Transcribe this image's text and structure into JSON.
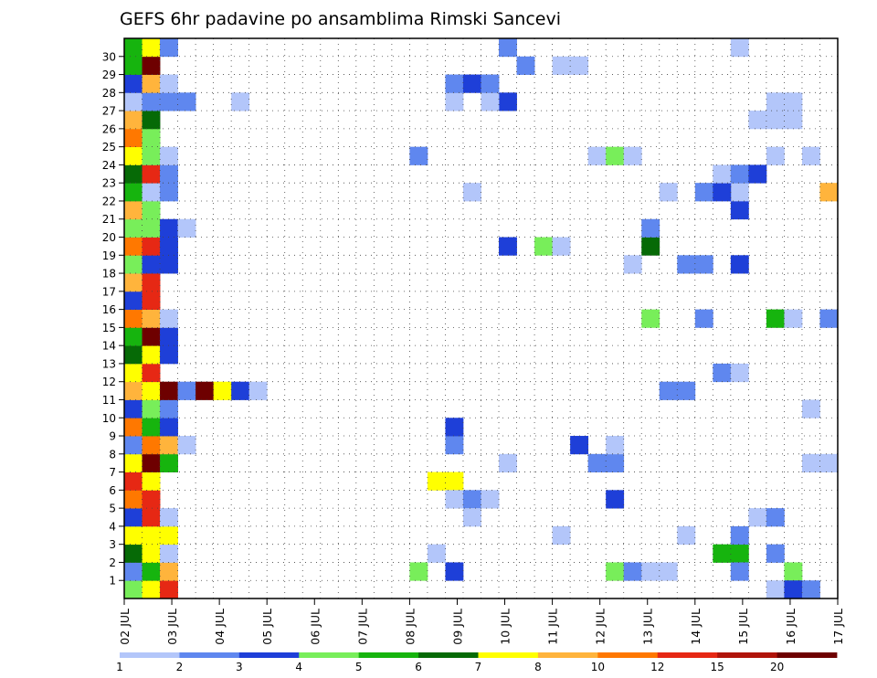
{
  "chart_data": {
    "type": "heatmap",
    "title": "GEFS 6hr padavine po ansamblima Rimski Sancevi",
    "xlabel": "",
    "ylabel": "",
    "x_ticks": [
      "02 JUL",
      "03 JUL",
      "04 JUL",
      "05 JUL",
      "06 JUL",
      "07 JUL",
      "08 JUL",
      "09 JUL",
      "10 JUL",
      "11 JUL",
      "12 JUL",
      "13 JUL",
      "14 JUL",
      "15 JUL",
      "16 JUL",
      "17 JUL"
    ],
    "y_ticks": [
      "1",
      "2",
      "3",
      "4",
      "5",
      "6",
      "7",
      "8",
      "9",
      "10",
      "11",
      "12",
      "13",
      "14",
      "15",
      "16",
      "17",
      "18",
      "19",
      "20",
      "21",
      "22",
      "23",
      "24",
      "25",
      "26",
      "27",
      "28",
      "29",
      "30"
    ],
    "member_range": [
      0,
      30
    ],
    "grid": true,
    "colorbar": {
      "labels": [
        "1",
        "2",
        "3",
        "4",
        "5",
        "6",
        "7",
        "8",
        "10",
        "12",
        "15",
        "20"
      ],
      "colors": [
        "#b3c6fa",
        "#5f87ef",
        "#1e3fd8",
        "#78ee5a",
        "#16b40e",
        "#066a06",
        "#ffff00",
        "#ffb43c",
        "#ff7800",
        "#e62814",
        "#b0140a",
        "#6e0000"
      ]
    },
    "cells": [
      {
        "d": 0,
        "m": 0,
        "c": 4
      },
      {
        "d": 1,
        "m": 0,
        "c": 7
      },
      {
        "d": 2,
        "m": 0,
        "c": 10
      },
      {
        "d": 0,
        "m": 1,
        "c": 2
      },
      {
        "d": 1,
        "m": 1,
        "c": 5
      },
      {
        "d": 2,
        "m": 1,
        "c": 8
      },
      {
        "d": 0,
        "m": 2,
        "c": 6
      },
      {
        "d": 1,
        "m": 2,
        "c": 7
      },
      {
        "d": 2,
        "m": 2,
        "c": 1
      },
      {
        "d": 0,
        "m": 3,
        "c": 7
      },
      {
        "d": 1,
        "m": 3,
        "c": 7
      },
      {
        "d": 2,
        "m": 3,
        "c": 7
      },
      {
        "d": 0,
        "m": 4,
        "c": 3
      },
      {
        "d": 1,
        "m": 4,
        "c": 10
      },
      {
        "d": 2,
        "m": 4,
        "c": 1
      },
      {
        "d": 0,
        "m": 5,
        "c": 9
      },
      {
        "d": 1,
        "m": 5,
        "c": 10
      },
      {
        "d": 0,
        "m": 6,
        "c": 10
      },
      {
        "d": 1,
        "m": 6,
        "c": 7
      },
      {
        "d": 0,
        "m": 7,
        "c": 7
      },
      {
        "d": 1,
        "m": 7,
        "c": 12
      },
      {
        "d": 2,
        "m": 7,
        "c": 5
      },
      {
        "d": 0,
        "m": 8,
        "c": 2
      },
      {
        "d": 1,
        "m": 8,
        "c": 9
      },
      {
        "d": 2,
        "m": 8,
        "c": 8
      },
      {
        "d": 3,
        "m": 8,
        "c": 1
      },
      {
        "d": 0,
        "m": 9,
        "c": 9
      },
      {
        "d": 1,
        "m": 9,
        "c": 5
      },
      {
        "d": 2,
        "m": 9,
        "c": 3
      },
      {
        "d": 0,
        "m": 10,
        "c": 3
      },
      {
        "d": 1,
        "m": 10,
        "c": 4
      },
      {
        "d": 2,
        "m": 10,
        "c": 2
      },
      {
        "d": 0,
        "m": 11,
        "c": 8
      },
      {
        "d": 1,
        "m": 11,
        "c": 7
      },
      {
        "d": 2,
        "m": 11,
        "c": 12
      },
      {
        "d": 3,
        "m": 11,
        "c": 2
      },
      {
        "d": 4,
        "m": 11,
        "c": 12
      },
      {
        "d": 5,
        "m": 11,
        "c": 7
      },
      {
        "d": 6,
        "m": 11,
        "c": 3
      },
      {
        "d": 7,
        "m": 11,
        "c": 1
      },
      {
        "d": 0,
        "m": 12,
        "c": 7
      },
      {
        "d": 1,
        "m": 12,
        "c": 10
      },
      {
        "d": 0,
        "m": 13,
        "c": 6
      },
      {
        "d": 1,
        "m": 13,
        "c": 7
      },
      {
        "d": 2,
        "m": 13,
        "c": 3
      },
      {
        "d": 0,
        "m": 14,
        "c": 5
      },
      {
        "d": 1,
        "m": 14,
        "c": 12
      },
      {
        "d": 2,
        "m": 14,
        "c": 3
      },
      {
        "d": 0,
        "m": 15,
        "c": 9
      },
      {
        "d": 1,
        "m": 15,
        "c": 8
      },
      {
        "d": 2,
        "m": 15,
        "c": 1
      },
      {
        "d": 0,
        "m": 16,
        "c": 3
      },
      {
        "d": 1,
        "m": 16,
        "c": 10
      },
      {
        "d": 0,
        "m": 17,
        "c": 8
      },
      {
        "d": 1,
        "m": 17,
        "c": 10
      },
      {
        "d": 0,
        "m": 18,
        "c": 4
      },
      {
        "d": 1,
        "m": 18,
        "c": 3
      },
      {
        "d": 2,
        "m": 18,
        "c": 3
      },
      {
        "d": 0,
        "m": 19,
        "c": 9
      },
      {
        "d": 1,
        "m": 19,
        "c": 10
      },
      {
        "d": 2,
        "m": 19,
        "c": 3
      },
      {
        "d": 0,
        "m": 20,
        "c": 4
      },
      {
        "d": 1,
        "m": 20,
        "c": 4
      },
      {
        "d": 2,
        "m": 20,
        "c": 3
      },
      {
        "d": 3,
        "m": 20,
        "c": 1
      },
      {
        "d": 0,
        "m": 21,
        "c": 8
      },
      {
        "d": 1,
        "m": 21,
        "c": 4
      },
      {
        "d": 0,
        "m": 22,
        "c": 5
      },
      {
        "d": 1,
        "m": 22,
        "c": 1
      },
      {
        "d": 2,
        "m": 22,
        "c": 2
      },
      {
        "d": 0,
        "m": 23,
        "c": 6
      },
      {
        "d": 1,
        "m": 23,
        "c": 10
      },
      {
        "d": 2,
        "m": 23,
        "c": 2
      },
      {
        "d": 0,
        "m": 24,
        "c": 7
      },
      {
        "d": 1,
        "m": 24,
        "c": 4
      },
      {
        "d": 2,
        "m": 24,
        "c": 1
      },
      {
        "d": 0,
        "m": 25,
        "c": 9
      },
      {
        "d": 1,
        "m": 25,
        "c": 4
      },
      {
        "d": 0,
        "m": 26,
        "c": 8
      },
      {
        "d": 1,
        "m": 26,
        "c": 6
      },
      {
        "d": 0,
        "m": 27,
        "c": 1
      },
      {
        "d": 1,
        "m": 27,
        "c": 2
      },
      {
        "d": 2,
        "m": 27,
        "c": 2
      },
      {
        "d": 3,
        "m": 27,
        "c": 2
      },
      {
        "d": 6,
        "m": 27,
        "c": 1
      },
      {
        "d": 0,
        "m": 28,
        "c": 3
      },
      {
        "d": 1,
        "m": 28,
        "c": 8
      },
      {
        "d": 2,
        "m": 28,
        "c": 1
      },
      {
        "d": 0,
        "m": 29,
        "c": 5
      },
      {
        "d": 1,
        "m": 29,
        "c": 12
      },
      {
        "d": 0,
        "m": 30,
        "c": 5
      },
      {
        "d": 1,
        "m": 30,
        "c": 7
      },
      {
        "d": 2,
        "m": 30,
        "c": 2
      },
      {
        "d": 16,
        "m": 1,
        "c": 4
      },
      {
        "d": 18,
        "m": 1,
        "c": 3
      },
      {
        "d": 18,
        "m": 27,
        "c": 1
      },
      {
        "d": 18,
        "m": 28,
        "c": 2
      },
      {
        "d": 17,
        "m": 2,
        "c": 1
      },
      {
        "d": 17,
        "m": 6,
        "c": 7
      },
      {
        "d": 18,
        "m": 6,
        "c": 7
      },
      {
        "d": 18,
        "m": 5,
        "c": 1
      },
      {
        "d": 19,
        "m": 5,
        "c": 2
      },
      {
        "d": 20,
        "m": 5,
        "c": 1
      },
      {
        "d": 19,
        "m": 4,
        "c": 1
      },
      {
        "d": 18,
        "m": 8,
        "c": 2
      },
      {
        "d": 18,
        "m": 9,
        "c": 3
      },
      {
        "d": 19,
        "m": 28,
        "c": 3
      },
      {
        "d": 19,
        "m": 22,
        "c": 1
      },
      {
        "d": 16,
        "m": 24,
        "c": 2
      },
      {
        "d": 21,
        "m": 7,
        "c": 1
      },
      {
        "d": 21,
        "m": 19,
        "c": 3
      },
      {
        "d": 21,
        "m": 27,
        "c": 3
      },
      {
        "d": 20,
        "m": 27,
        "c": 1
      },
      {
        "d": 20,
        "m": 28,
        "c": 2
      },
      {
        "d": 21,
        "m": 30,
        "c": 2
      },
      {
        "d": 22,
        "m": 29,
        "c": 2
      },
      {
        "d": 23,
        "m": 19,
        "c": 4
      },
      {
        "d": 24,
        "m": 19,
        "c": 1
      },
      {
        "d": 24,
        "m": 3,
        "c": 1
      },
      {
        "d": 24,
        "m": 29,
        "c": 1
      },
      {
        "d": 25,
        "m": 29,
        "c": 1
      },
      {
        "d": 25,
        "m": 8,
        "c": 3
      },
      {
        "d": 26,
        "m": 7,
        "c": 2
      },
      {
        "d": 26,
        "m": 24,
        "c": 1
      },
      {
        "d": 27,
        "m": 24,
        "c": 4
      },
      {
        "d": 28,
        "m": 24,
        "c": 1
      },
      {
        "d": 27,
        "m": 1,
        "c": 4
      },
      {
        "d": 28,
        "m": 1,
        "c": 2
      },
      {
        "d": 27,
        "m": 5,
        "c": 3
      },
      {
        "d": 27,
        "m": 7,
        "c": 2
      },
      {
        "d": 27,
        "m": 8,
        "c": 1
      },
      {
        "d": 28,
        "m": 18,
        "c": 1
      },
      {
        "d": 29,
        "m": 1,
        "c": 1
      },
      {
        "d": 30,
        "m": 1,
        "c": 1
      },
      {
        "d": 29,
        "m": 19,
        "c": 6
      },
      {
        "d": 29,
        "m": 20,
        "c": 2
      },
      {
        "d": 29,
        "m": 15,
        "c": 4
      },
      {
        "d": 30,
        "m": 22,
        "c": 1
      },
      {
        "d": 31,
        "m": 18,
        "c": 2
      },
      {
        "d": 32,
        "m": 18,
        "c": 2
      },
      {
        "d": 32,
        "m": 15,
        "c": 2
      },
      {
        "d": 31,
        "m": 3,
        "c": 1
      },
      {
        "d": 30,
        "m": 11,
        "c": 2
      },
      {
        "d": 31,
        "m": 11,
        "c": 2
      },
      {
        "d": 32,
        "m": 22,
        "c": 2
      },
      {
        "d": 33,
        "m": 12,
        "c": 2
      },
      {
        "d": 34,
        "m": 12,
        "c": 1
      },
      {
        "d": 33,
        "m": 2,
        "c": 5
      },
      {
        "d": 34,
        "m": 2,
        "c": 5
      },
      {
        "d": 34,
        "m": 1,
        "c": 2
      },
      {
        "d": 34,
        "m": 3,
        "c": 2
      },
      {
        "d": 35,
        "m": 4,
        "c": 1
      },
      {
        "d": 34,
        "m": 18,
        "c": 3
      },
      {
        "d": 34,
        "m": 21,
        "c": 3
      },
      {
        "d": 34,
        "m": 22,
        "c": 1
      },
      {
        "d": 33,
        "m": 22,
        "c": 3
      },
      {
        "d": 33,
        "m": 23,
        "c": 1
      },
      {
        "d": 34,
        "m": 23,
        "c": 2
      },
      {
        "d": 35,
        "m": 23,
        "c": 3
      },
      {
        "d": 34,
        "m": 30,
        "c": 1
      },
      {
        "d": 35,
        "m": 26,
        "c": 1
      },
      {
        "d": 36,
        "m": 0,
        "c": 1
      },
      {
        "d": 36,
        "m": 2,
        "c": 2
      },
      {
        "d": 36,
        "m": 4,
        "c": 2
      },
      {
        "d": 36,
        "m": 15,
        "c": 5
      },
      {
        "d": 37,
        "m": 15,
        "c": 1
      },
      {
        "d": 37,
        "m": 1,
        "c": 4
      },
      {
        "d": 36,
        "m": 24,
        "c": 1
      },
      {
        "d": 36,
        "m": 26,
        "c": 1
      },
      {
        "d": 37,
        "m": 26,
        "c": 1
      },
      {
        "d": 36,
        "m": 27,
        "c": 1
      },
      {
        "d": 37,
        "m": 27,
        "c": 1
      },
      {
        "d": 37,
        "m": 0,
        "c": 3
      },
      {
        "d": 38,
        "m": 0,
        "c": 2
      },
      {
        "d": 38,
        "m": 7,
        "c": 1
      },
      {
        "d": 39,
        "m": 7,
        "c": 1
      },
      {
        "d": 38,
        "m": 10,
        "c": 1
      },
      {
        "d": 38,
        "m": 24,
        "c": 1
      },
      {
        "d": 39,
        "m": 22,
        "c": 8
      },
      {
        "d": 39,
        "m": 15,
        "c": 2
      }
    ]
  }
}
